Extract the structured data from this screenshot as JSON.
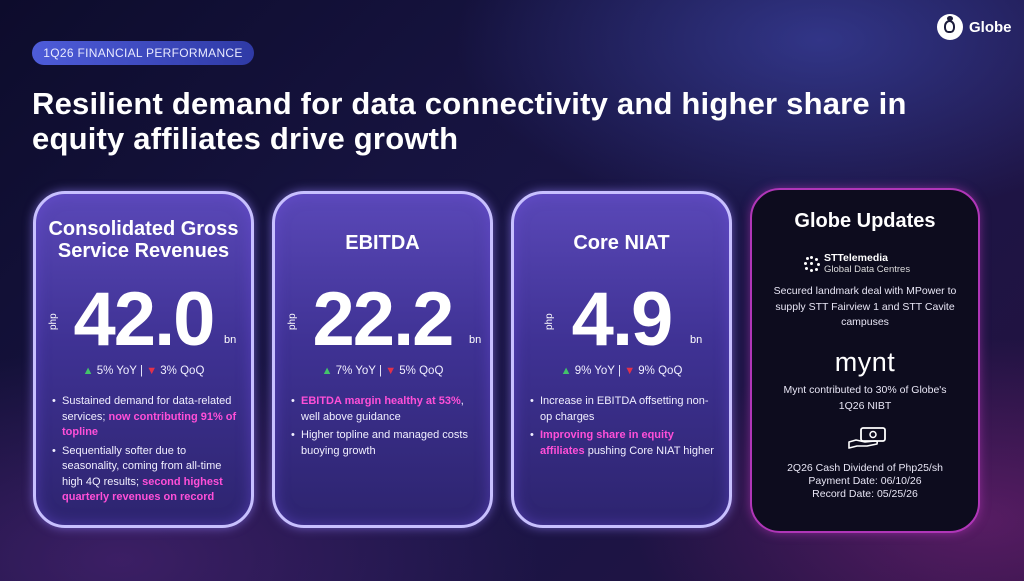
{
  "header": {
    "tag": "1Q26 FINANCIAL PERFORMANCE",
    "logo_text": "Globe",
    "headline": "Resilient demand for data connectivity and higher share in equity affiliates drive growth"
  },
  "cards": [
    {
      "title": "Consolidated Gross Service Revenues",
      "currency": "php",
      "value": "42.0",
      "unit": "bn",
      "yoy": "5% YoY",
      "qoq": "3% QoQ",
      "separator": "|",
      "yoy_direction": "up",
      "qoq_direction": "down",
      "bullets": [
        {
          "text": "Sustained demand for data-related services; ",
          "highlight": "now contributing 91% of topline"
        },
        {
          "text": "Sequentially softer due to seasonality, coming from all-time high 4Q results; ",
          "highlight": "second highest quarterly revenues on record"
        }
      ]
    },
    {
      "title": "EBITDA",
      "currency": "php",
      "value": "22.2",
      "unit": "bn",
      "yoy": "7% YoY",
      "qoq": "5% QoQ",
      "separator": "|",
      "yoy_direction": "up",
      "qoq_direction": "down",
      "bullets": [
        {
          "highlight": "EBITDA margin healthy at 53%",
          "text": ", well above guidance"
        },
        {
          "text": "Higher topline and managed costs buoying growth"
        }
      ]
    },
    {
      "title": "Core NIAT",
      "currency": "php",
      "value": "4.9",
      "unit": "bn",
      "yoy": "9% YoY",
      "qoq": "9% QoQ",
      "separator": "|",
      "yoy_direction": "up",
      "qoq_direction": "down",
      "bullets": [
        {
          "text": "Increase in EBITDA offsetting non-op charges"
        },
        {
          "highlight": "Improving share in equity affiliates",
          "text": " pushing Core NIAT higher"
        }
      ]
    }
  ],
  "updates": {
    "title": "Globe Updates",
    "stt_brand": "STTelemedia",
    "stt_sub": "Global Data Centres",
    "stt_text": "Secured landmark deal with MPower to supply STT Fairview 1 and STT Cavite campuses",
    "mynt_logo": "mynt",
    "mynt_text": "Mynt contributed to 30% of Globe's 1Q26 NIBT",
    "dividend_line1": "2Q26 Cash Dividend of Php25/sh",
    "dividend_line2": "Payment Date: 06/10/26",
    "dividend_line3": "Record Date: 05/25/26"
  },
  "colors": {
    "highlight": "#ff4fd8",
    "up": "#43c46a",
    "down": "#e2314a",
    "tag_bg": "#4e5cd9"
  },
  "icons": {
    "logo": "globe-logo-icon",
    "up": "triangle-up-icon",
    "down": "triangle-down-icon",
    "cash": "cash-hand-icon",
    "stt": "stt-dots-icon"
  }
}
